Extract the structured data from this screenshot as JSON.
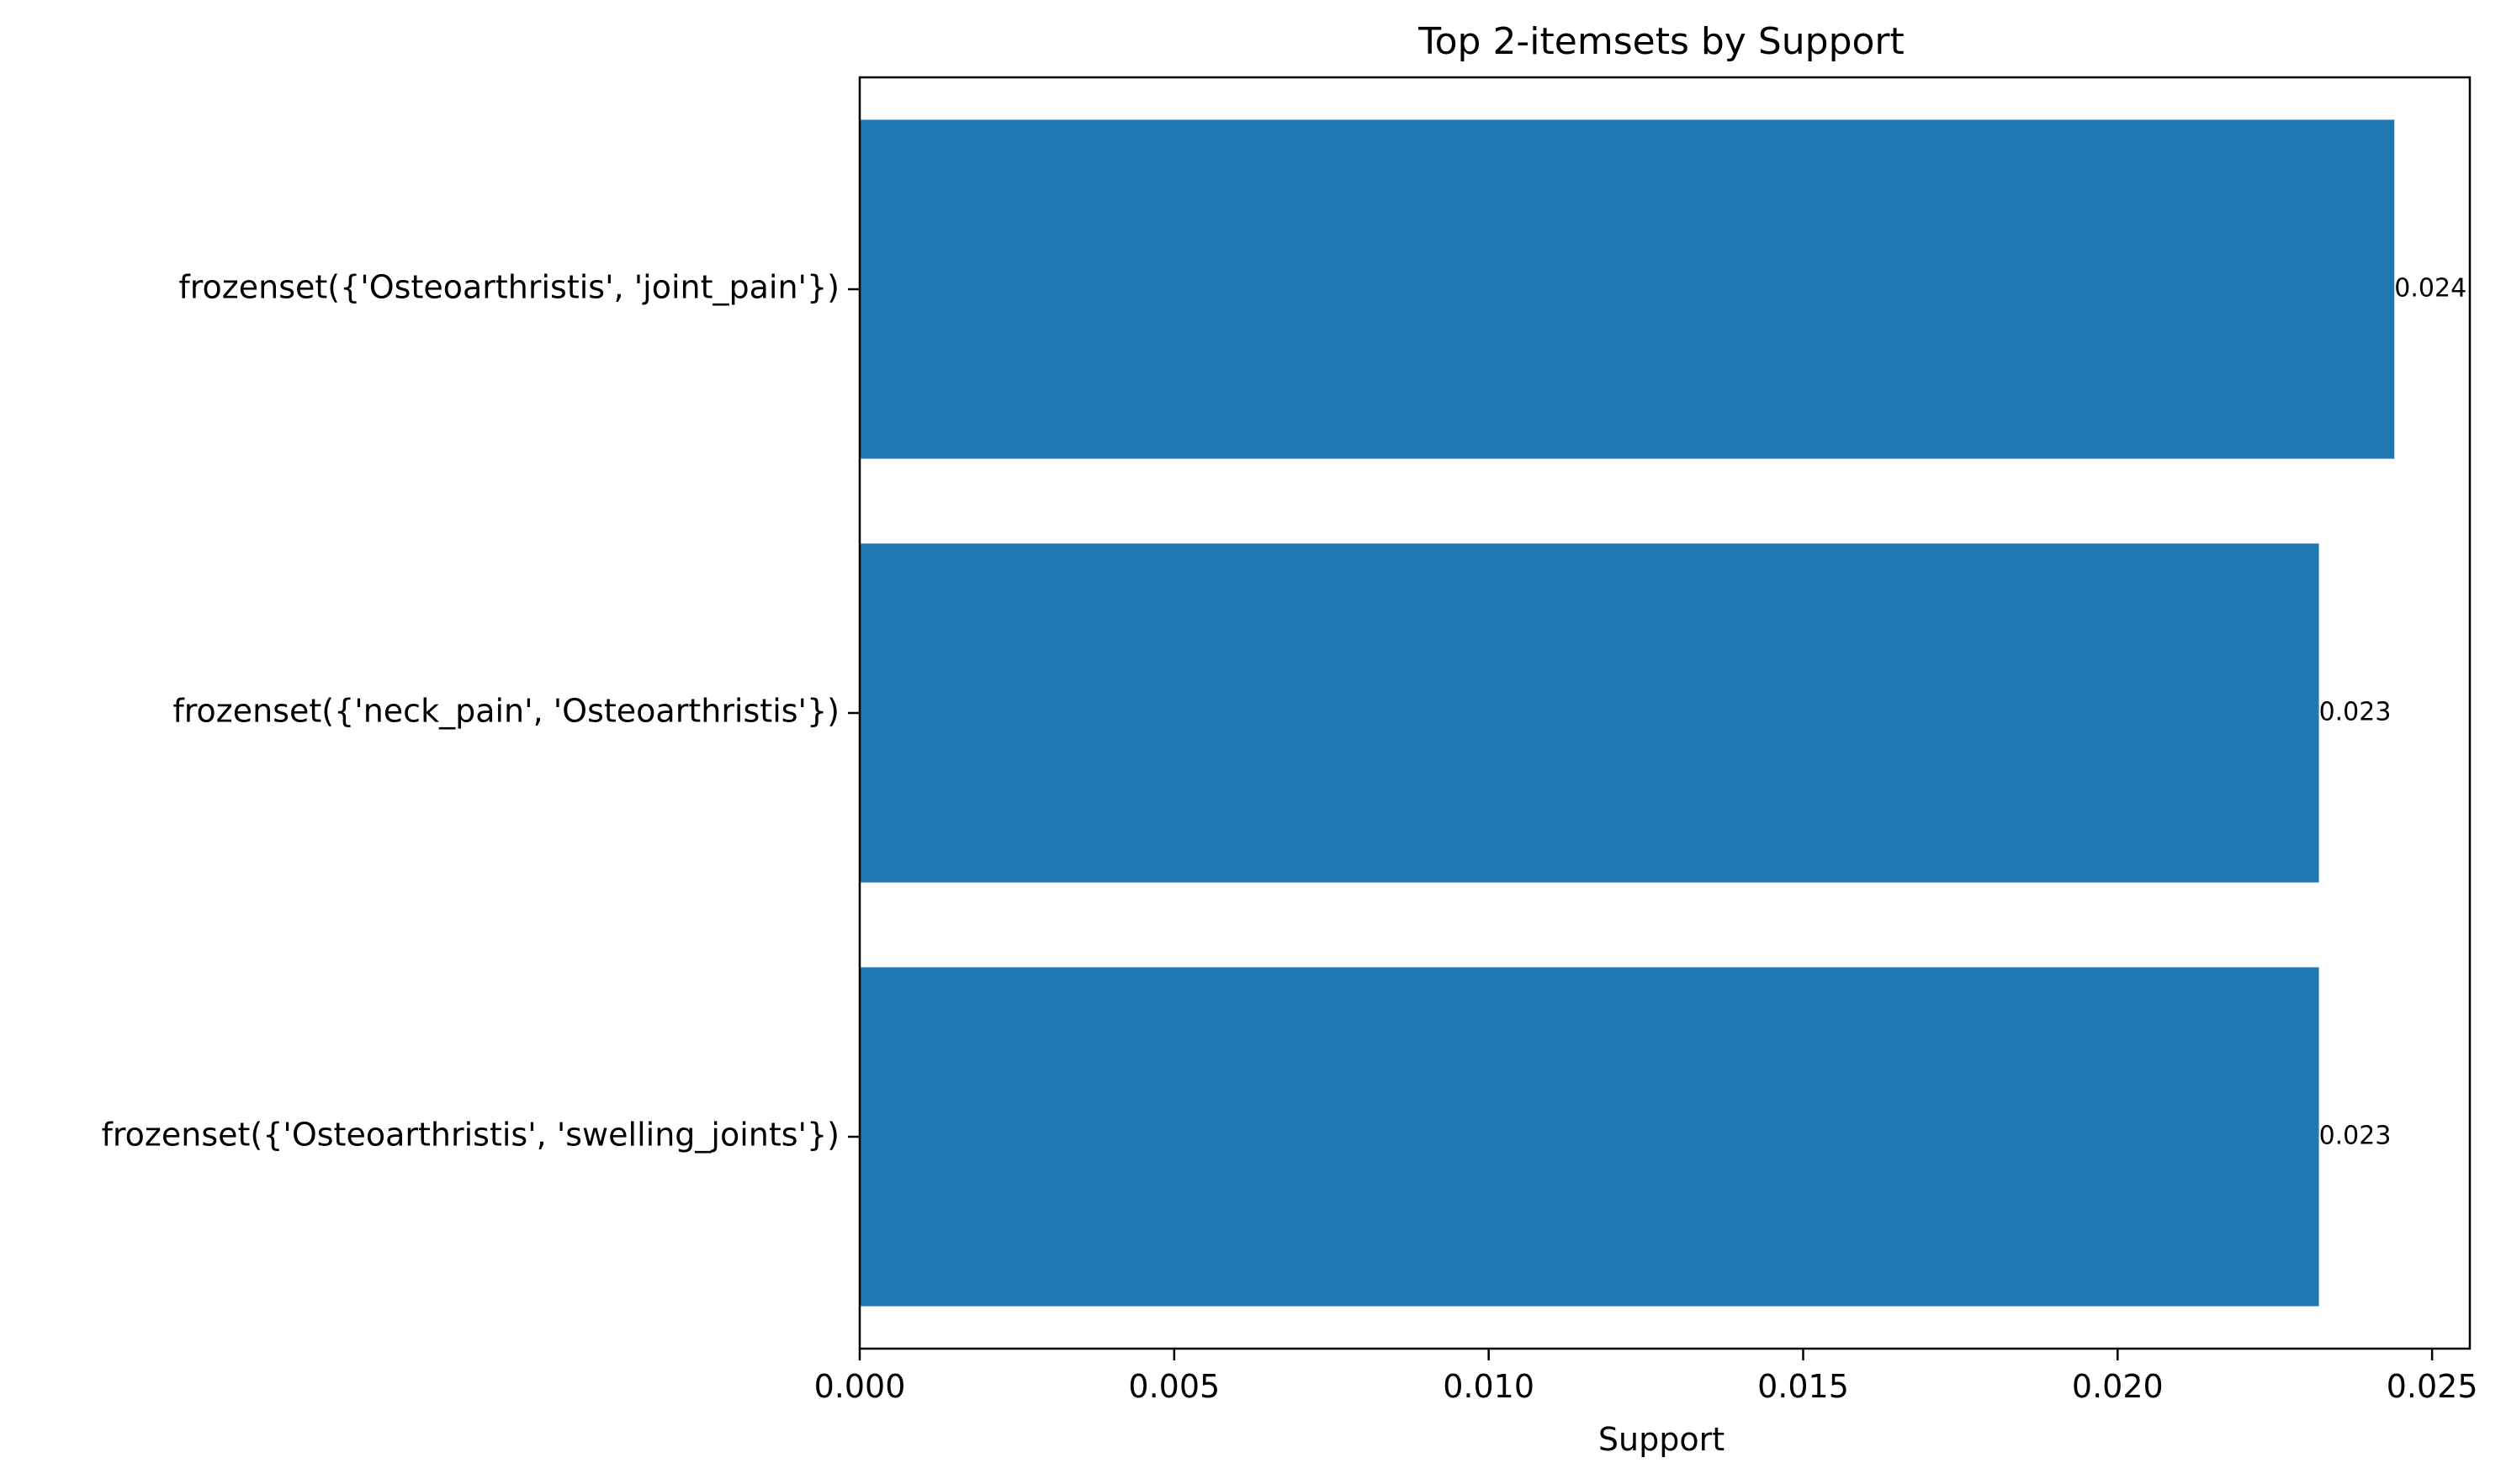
{
  "chart_data": {
    "type": "bar",
    "orientation": "horizontal",
    "title": "Top 2-itemsets by Support",
    "xlabel": "Support",
    "ylabel": "",
    "categories": [
      "frozenset({'Osteoarthristis', 'joint_pain'})",
      "frozenset({'neck_pain', 'Osteoarthristis'})",
      "frozenset({'Osteoarthristis', 'swelling_joints'})"
    ],
    "values": [
      0.0244,
      0.0232,
      0.0232
    ],
    "data_labels": [
      "0.024",
      "0.023",
      "0.023"
    ],
    "xlim": [
      0,
      0.0256
    ],
    "xticks": [
      0.0,
      0.005,
      0.01,
      0.015,
      0.02,
      0.025
    ],
    "xtick_labels": [
      "0.000",
      "0.005",
      "0.010",
      "0.015",
      "0.020",
      "0.025"
    ],
    "bar_color": "#1f77b4",
    "grid": false,
    "legend": "none"
  }
}
